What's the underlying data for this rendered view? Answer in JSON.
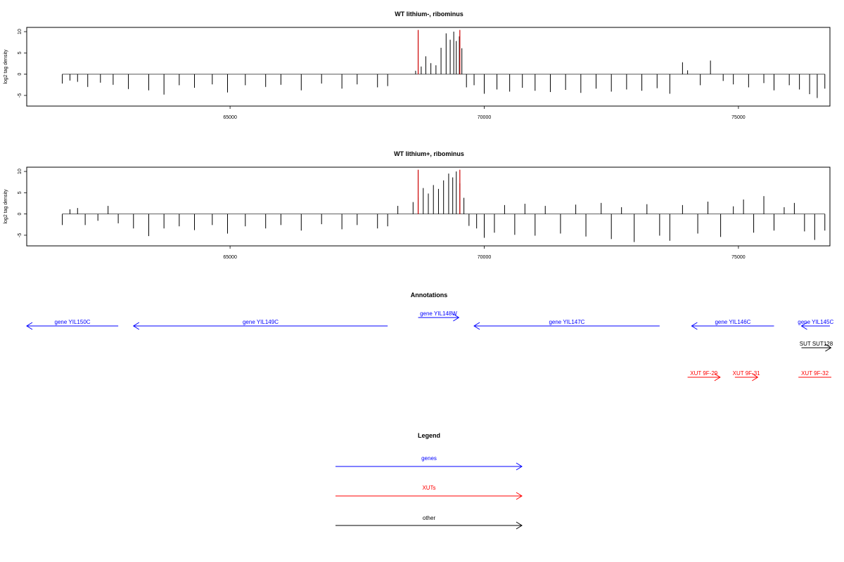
{
  "chart_data": [
    {
      "type": "bar",
      "title": "WT lithium-, ribominus",
      "ylabel": "log2 tag density",
      "xlabel": "",
      "xlim": [
        61000,
        76800
      ],
      "ylim": [
        -7.5,
        11
      ],
      "x_ticks": [
        "65000",
        "70000",
        "75000"
      ],
      "y_ticks": [
        "-5",
        "0",
        "5",
        "10"
      ],
      "grid": false,
      "feature_markers": [
        68700,
        69520
      ],
      "feature_color": "#cc0000",
      "series": [
        {
          "values": [
            [
              61700,
              -2.2
            ],
            [
              61850,
              -1.5
            ],
            [
              62000,
              -1.8
            ],
            [
              62200,
              -3
            ],
            [
              62450,
              -2
            ],
            [
              62700,
              -2.5
            ],
            [
              63000,
              -3.5
            ],
            [
              63400,
              -3.8
            ],
            [
              63700,
              -4.8
            ],
            [
              64000,
              -2.6
            ],
            [
              64300,
              -3.2
            ],
            [
              64650,
              -2.4
            ],
            [
              64950,
              -4.3
            ],
            [
              65300,
              -2.6
            ],
            [
              65700,
              -3
            ],
            [
              66000,
              -2.5
            ],
            [
              66400,
              -3.8
            ],
            [
              66800,
              -2.2
            ],
            [
              67200,
              -3.4
            ],
            [
              67500,
              -2.4
            ],
            [
              67900,
              -3.1
            ],
            [
              68100,
              -2.8
            ],
            [
              68650,
              0.8
            ],
            [
              68760,
              1.8
            ],
            [
              68850,
              4.2
            ],
            [
              68950,
              2.6
            ],
            [
              69050,
              2.1
            ],
            [
              69150,
              6.2
            ],
            [
              69250,
              9.6
            ],
            [
              69330,
              8.1
            ],
            [
              69400,
              10.0
            ],
            [
              69450,
              7.8
            ],
            [
              69510,
              8.9
            ],
            [
              69560,
              6.1
            ],
            [
              69650,
              -3.1
            ],
            [
              69800,
              -2.6
            ],
            [
              70000,
              -4.6
            ],
            [
              70250,
              -3.6
            ],
            [
              70500,
              -4.1
            ],
            [
              70750,
              -3.2
            ],
            [
              71000,
              -3.9
            ],
            [
              71300,
              -4.2
            ],
            [
              71600,
              -3.7
            ],
            [
              71900,
              -4.4
            ],
            [
              72200,
              -3.4
            ],
            [
              72500,
              -4.1
            ],
            [
              72800,
              -3.6
            ],
            [
              73100,
              -3.9
            ],
            [
              73400,
              -3.3
            ],
            [
              73650,
              -4.6
            ],
            [
              73900,
              2.8
            ],
            [
              74000,
              0.9
            ],
            [
              74250,
              -2.6
            ],
            [
              74450,
              3.2
            ],
            [
              74700,
              -1.6
            ],
            [
              74900,
              -2.4
            ],
            [
              75200,
              -3.1
            ],
            [
              75500,
              -2.1
            ],
            [
              75700,
              -3.8
            ],
            [
              76000,
              -2.6
            ],
            [
              76200,
              -3.6
            ],
            [
              76400,
              -4.7
            ],
            [
              76550,
              -5.6
            ],
            [
              76700,
              -3.4
            ]
          ]
        }
      ]
    },
    {
      "type": "bar",
      "title": "WT lithium+, ribominus",
      "ylabel": "log2 tag density",
      "xlabel": "",
      "xlim": [
        61000,
        76800
      ],
      "ylim": [
        -7.5,
        11
      ],
      "x_ticks": [
        "65000",
        "70000",
        "75000"
      ],
      "y_ticks": [
        "-5",
        "0",
        "5",
        "10"
      ],
      "grid": false,
      "feature_markers": [
        68700,
        69520
      ],
      "feature_color": "#cc0000",
      "series": [
        {
          "values": [
            [
              61700,
              -2.6
            ],
            [
              61850,
              1.1
            ],
            [
              62000,
              1.4
            ],
            [
              62150,
              -2.6
            ],
            [
              62400,
              -1.6
            ],
            [
              62600,
              1.9
            ],
            [
              62800,
              -2.2
            ],
            [
              63100,
              -3.4
            ],
            [
              63400,
              -5.2
            ],
            [
              63700,
              -3.4
            ],
            [
              64000,
              -2.9
            ],
            [
              64300,
              -3.8
            ],
            [
              64650,
              -2.6
            ],
            [
              64950,
              -4.6
            ],
            [
              65300,
              -2.9
            ],
            [
              65700,
              -3.4
            ],
            [
              66000,
              -2.6
            ],
            [
              66400,
              -3.9
            ],
            [
              66800,
              -2.4
            ],
            [
              67200,
              -3.6
            ],
            [
              67500,
              -2.6
            ],
            [
              67900,
              -3.4
            ],
            [
              68100,
              -2.9
            ],
            [
              68300,
              1.9
            ],
            [
              68600,
              2.8
            ],
            [
              68700,
              3.9
            ],
            [
              68800,
              6.1
            ],
            [
              68900,
              4.8
            ],
            [
              69000,
              6.8
            ],
            [
              69100,
              5.9
            ],
            [
              69200,
              7.9
            ],
            [
              69300,
              9.5
            ],
            [
              69380,
              8.6
            ],
            [
              69450,
              10.0
            ],
            [
              69520,
              7.2
            ],
            [
              69600,
              3.8
            ],
            [
              69700,
              -2.8
            ],
            [
              69850,
              -3.4
            ],
            [
              70000,
              -5.6
            ],
            [
              70200,
              -4.4
            ],
            [
              70400,
              2.1
            ],
            [
              70600,
              -4.9
            ],
            [
              70800,
              2.4
            ],
            [
              71000,
              -5.1
            ],
            [
              71200,
              1.9
            ],
            [
              71500,
              -4.6
            ],
            [
              71800,
              2.2
            ],
            [
              72000,
              -5.3
            ],
            [
              72300,
              2.6
            ],
            [
              72500,
              -5.9
            ],
            [
              72700,
              1.6
            ],
            [
              72950,
              -6.6
            ],
            [
              73200,
              2.3
            ],
            [
              73450,
              -5.1
            ],
            [
              73650,
              -6.3
            ],
            [
              73900,
              2.1
            ],
            [
              74200,
              -4.6
            ],
            [
              74400,
              2.9
            ],
            [
              74650,
              -5.4
            ],
            [
              74900,
              1.8
            ],
            [
              75100,
              3.4
            ],
            [
              75300,
              -4.4
            ],
            [
              75500,
              4.2
            ],
            [
              75700,
              -3.9
            ],
            [
              75900,
              1.6
            ],
            [
              76100,
              2.6
            ],
            [
              76300,
              -4.1
            ],
            [
              76500,
              -6.1
            ],
            [
              76700,
              -3.9
            ]
          ]
        }
      ]
    }
  ],
  "annotations": {
    "title": "Annotations",
    "genes": [
      {
        "label": "gene YIL150C",
        "start": 62800,
        "end": 61000,
        "color": "#0000ff",
        "row": 0
      },
      {
        "label": "gene YIL149C",
        "start": 68100,
        "end": 63100,
        "color": "#0000ff",
        "row": 0
      },
      {
        "label": "gene YIL148W",
        "start": 68700,
        "end": 69500,
        "color": "#0000ff",
        "row": -1
      },
      {
        "label": "gene YIL147C",
        "start": 73450,
        "end": 69800,
        "color": "#0000ff",
        "row": 0
      },
      {
        "label": "gene YIL146C",
        "start": 75700,
        "end": 74080,
        "color": "#0000ff",
        "row": 0
      },
      {
        "label": "gene YIL145C",
        "start": 76800,
        "end": 76240,
        "color": "#0000ff",
        "row": 0
      }
    ],
    "other": [
      {
        "label": "SUT SUT128",
        "start": 76240,
        "end": 76820,
        "color": "#000000",
        "row": 1
      }
    ],
    "xuts": [
      {
        "label": "XUT 9F-29",
        "start": 74000,
        "end": 74640,
        "color": "#ff0000",
        "row": 3
      },
      {
        "label": "XUT 9F-31",
        "start": 74930,
        "end": 75380,
        "color": "#ff0000",
        "row": 3
      },
      {
        "label": "XUT 9F-32",
        "start": 76180,
        "end": 77000,
        "color": "#ff0000",
        "row": 3
      }
    ]
  },
  "legend": {
    "title": "Legend",
    "items": [
      {
        "label": "genes",
        "color": "#0000ff"
      },
      {
        "label": "XUTs",
        "color": "#ff0000"
      },
      {
        "label": "other",
        "color": "#000000"
      }
    ]
  }
}
